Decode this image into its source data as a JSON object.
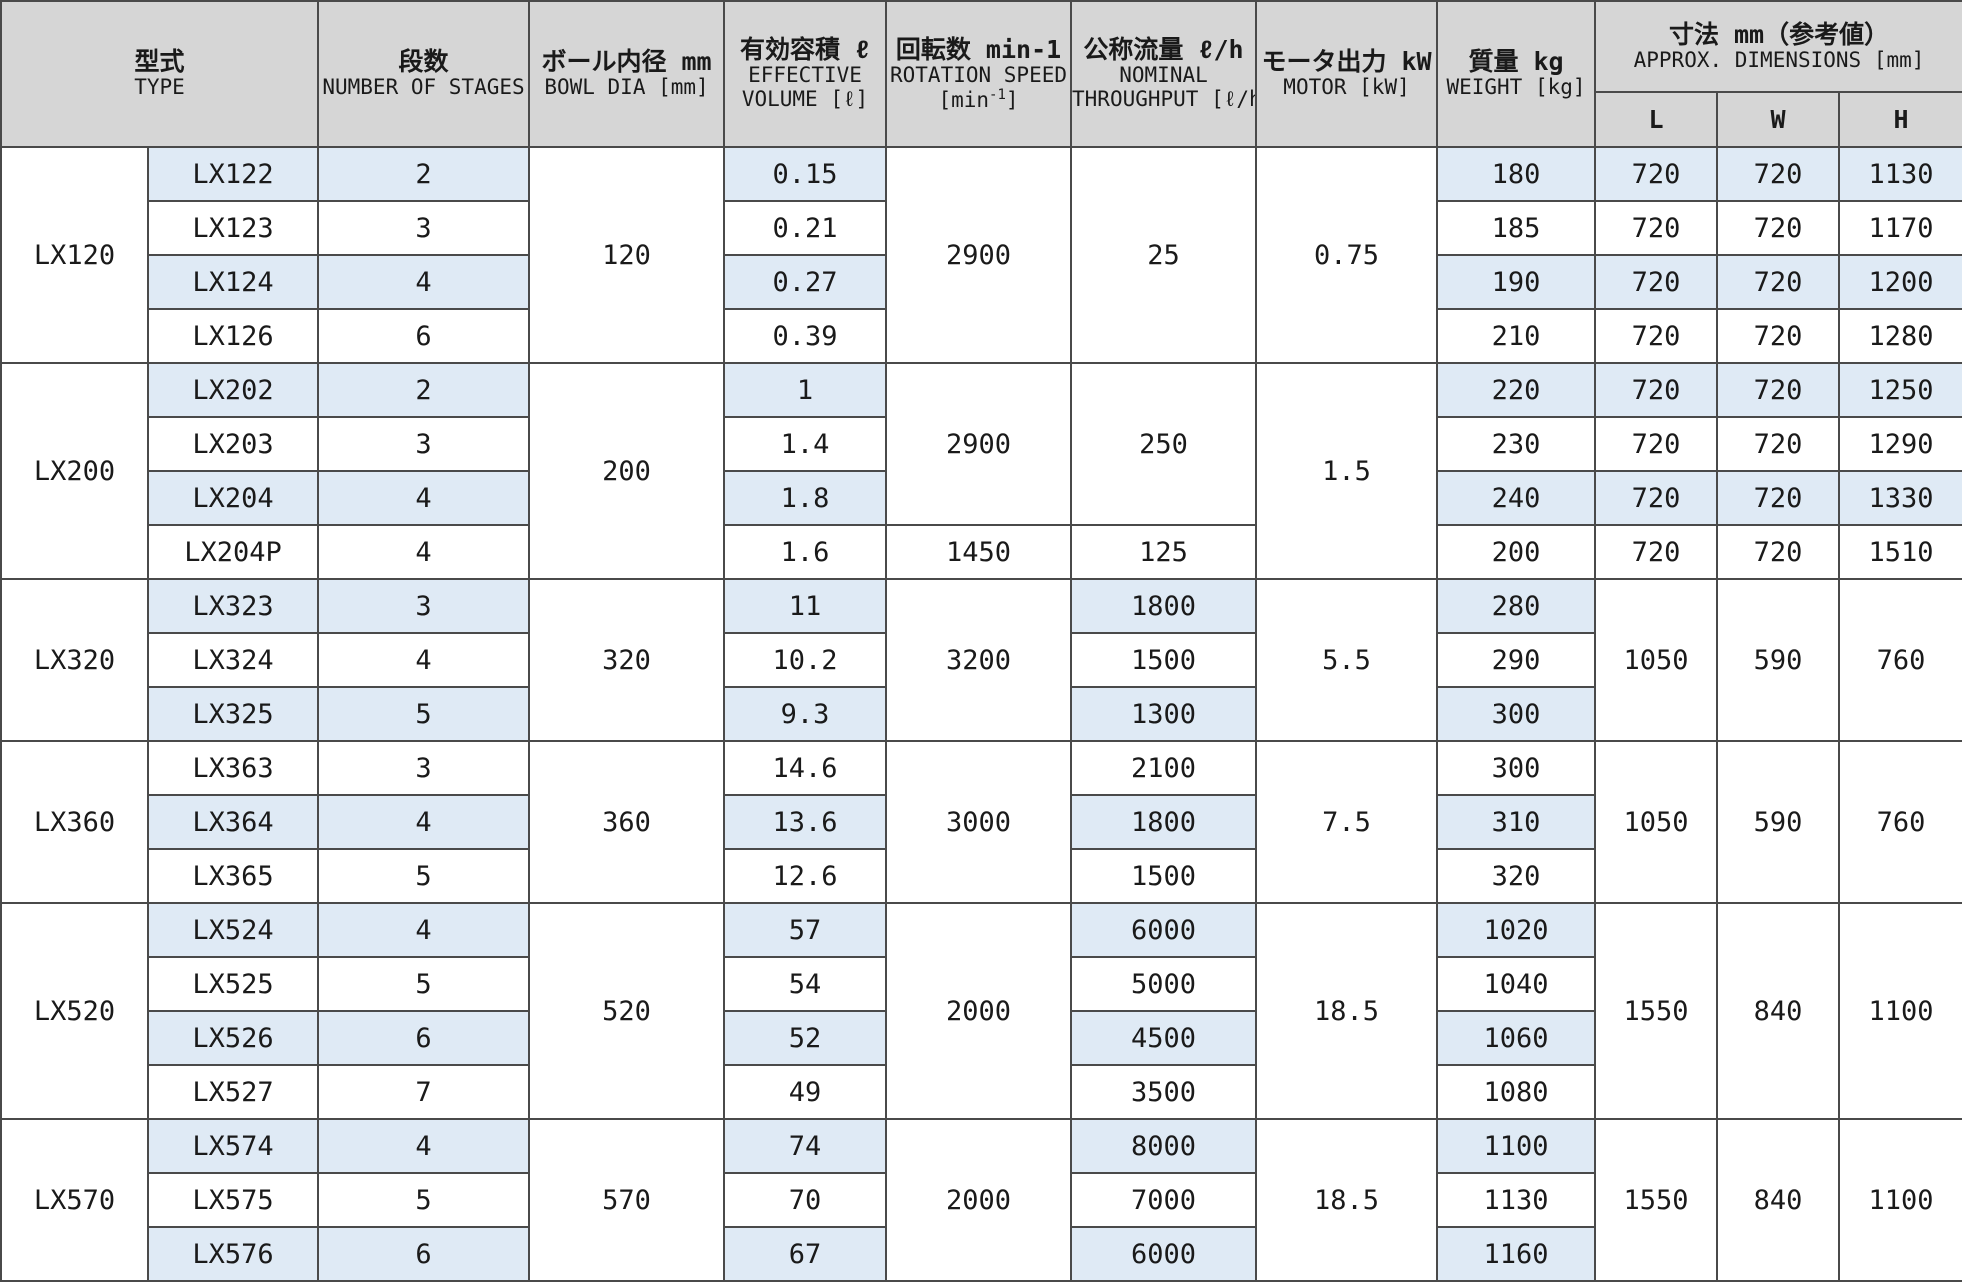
{
  "headers": {
    "type": {
      "jp": "型式",
      "en": "TYPE"
    },
    "stages": {
      "jp": "段数",
      "en": "NUMBER OF STAGES"
    },
    "bowl_dia": {
      "jp": "ボール内径 mm",
      "en": "BOWL DIA [mm]"
    },
    "effective_volume": {
      "jp": "有効容積 ℓ",
      "en1": "EFFECTIVE",
      "en2": "VOLUME [ℓ]"
    },
    "rotation_speed": {
      "jp": "回転数 min-1",
      "en1": "ROTATION SPEED",
      "en2_pre": "[min",
      "en2_sup": "-1",
      "en2_post": "]"
    },
    "throughput": {
      "jp": "公称流量 ℓ/h",
      "en1": "NOMINAL",
      "en2": "THROUGHPUT [ℓ/h]"
    },
    "motor": {
      "jp": "モータ出力 kW",
      "en": "MOTOR [kW]"
    },
    "weight": {
      "jp": "質量 kg",
      "en": "WEIGHT [kg]"
    },
    "dimensions": {
      "jp": "寸法 mm（参考値）",
      "en": "APPROX. DIMENSIONS [mm]"
    },
    "dim_l": "L",
    "dim_w": "W",
    "dim_h": "H"
  },
  "groups": [
    {
      "series": "LX120",
      "bowl": "120",
      "rpm": "2900",
      "flow": "25",
      "motor": "0.75",
      "models": [
        {
          "model": "LX122",
          "stages": "2",
          "volume": "0.15",
          "weight": "180",
          "l": "720",
          "w": "720",
          "h": "1130"
        },
        {
          "model": "LX123",
          "stages": "3",
          "volume": "0.21",
          "weight": "185",
          "l": "720",
          "w": "720",
          "h": "1170"
        },
        {
          "model": "LX124",
          "stages": "4",
          "volume": "0.27",
          "weight": "190",
          "l": "720",
          "w": "720",
          "h": "1200"
        },
        {
          "model": "LX126",
          "stages": "6",
          "volume": "0.39",
          "weight": "210",
          "l": "720",
          "w": "720",
          "h": "1280"
        }
      ]
    },
    {
      "series": "LX200",
      "bowl": "200",
      "rpm": "2900",
      "flow": "250",
      "motor": "1.5",
      "rpm_p": "1450",
      "flow_p": "125",
      "models": [
        {
          "model": "LX202",
          "stages": "2",
          "volume": "1",
          "weight": "220",
          "l": "720",
          "w": "720",
          "h": "1250"
        },
        {
          "model": "LX203",
          "stages": "3",
          "volume": "1.4",
          "weight": "230",
          "l": "720",
          "w": "720",
          "h": "1290"
        },
        {
          "model": "LX204",
          "stages": "4",
          "volume": "1.8",
          "weight": "240",
          "l": "720",
          "w": "720",
          "h": "1330"
        },
        {
          "model": "LX204P",
          "stages": "4",
          "volume": "1.6",
          "weight": "200",
          "l": "720",
          "w": "720",
          "h": "1510"
        }
      ]
    },
    {
      "series": "LX320",
      "bowl": "320",
      "rpm": "3200",
      "motor": "5.5",
      "l": "1050",
      "w": "590",
      "h": "760",
      "models": [
        {
          "model": "LX323",
          "stages": "3",
          "volume": "11",
          "flow": "1800",
          "weight": "280"
        },
        {
          "model": "LX324",
          "stages": "4",
          "volume": "10.2",
          "flow": "1500",
          "weight": "290"
        },
        {
          "model": "LX325",
          "stages": "5",
          "volume": "9.3",
          "flow": "1300",
          "weight": "300"
        }
      ]
    },
    {
      "series": "LX360",
      "bowl": "360",
      "rpm": "3000",
      "motor": "7.5",
      "l": "1050",
      "w": "590",
      "h": "760",
      "models": [
        {
          "model": "LX363",
          "stages": "3",
          "volume": "14.6",
          "flow": "2100",
          "weight": "300"
        },
        {
          "model": "LX364",
          "stages": "4",
          "volume": "13.6",
          "flow": "1800",
          "weight": "310"
        },
        {
          "model": "LX365",
          "stages": "5",
          "volume": "12.6",
          "flow": "1500",
          "weight": "320"
        }
      ]
    },
    {
      "series": "LX520",
      "bowl": "520",
      "rpm": "2000",
      "motor": "18.5",
      "l": "1550",
      "w": "840",
      "h": "1100",
      "models": [
        {
          "model": "LX524",
          "stages": "4",
          "volume": "57",
          "flow": "6000",
          "weight": "1020"
        },
        {
          "model": "LX525",
          "stages": "5",
          "volume": "54",
          "flow": "5000",
          "weight": "1040"
        },
        {
          "model": "LX526",
          "stages": "6",
          "volume": "52",
          "flow": "4500",
          "weight": "1060"
        },
        {
          "model": "LX527",
          "stages": "7",
          "volume": "49",
          "flow": "3500",
          "weight": "1080"
        }
      ]
    },
    {
      "series": "LX570",
      "bowl": "570",
      "rpm": "2000",
      "motor": "18.5",
      "l": "1550",
      "w": "840",
      "h": "1100",
      "models": [
        {
          "model": "LX574",
          "stages": "4",
          "volume": "74",
          "flow": "8000",
          "weight": "1100"
        },
        {
          "model": "LX575",
          "stages": "5",
          "volume": "70",
          "flow": "7000",
          "weight": "1130"
        },
        {
          "model": "LX576",
          "stages": "6",
          "volume": "67",
          "flow": "6000",
          "weight": "1160"
        }
      ]
    }
  ]
}
